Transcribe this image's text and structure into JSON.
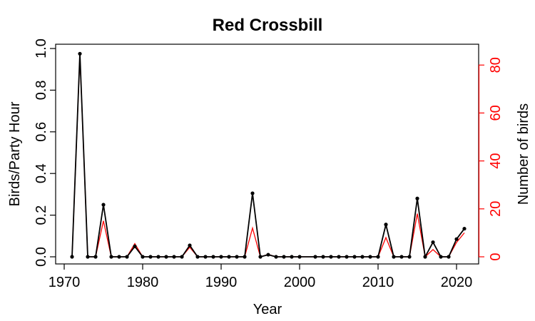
{
  "chart_data": {
    "type": "line",
    "title": "Red Crossbill",
    "xlabel": "Year",
    "ylabel": "Birds/Party Hour",
    "y2label": "Number of birds",
    "xlim": [
      1970,
      2023
    ],
    "ylim": [
      0,
      1
    ],
    "y2lim": [
      0,
      85
    ],
    "xticks": [
      1970,
      1980,
      1990,
      2000,
      2010,
      2020
    ],
    "yticks": [
      0.0,
      0.2,
      0.4,
      0.6,
      0.8,
      1.0
    ],
    "yticklabels": [
      "0.0",
      "0.2",
      "0.4",
      "0.6",
      "0.8",
      "1.0"
    ],
    "y2ticks": [
      0,
      20,
      40,
      60,
      80
    ],
    "colors": {
      "primary": "#000000",
      "secondary": "#ff0000"
    },
    "series": [
      {
        "axis": "left",
        "color": "#000000",
        "markers": true,
        "points": [
          [
            1971,
            0.0
          ],
          [
            1972,
            0.975
          ],
          [
            1973,
            0.0
          ],
          [
            1974,
            0.0
          ],
          [
            1975,
            0.25
          ],
          [
            1976,
            0.0
          ],
          [
            1977,
            0.0
          ],
          [
            1978,
            0.0
          ],
          [
            1979,
            0.05
          ],
          [
            1980,
            0.0
          ],
          [
            1981,
            0.0
          ],
          [
            1982,
            0.0
          ],
          [
            1983,
            0.0
          ],
          [
            1984,
            0.0
          ],
          [
            1985,
            0.0
          ],
          [
            1986,
            0.055
          ],
          [
            1987,
            0.0
          ],
          [
            1988,
            0.0
          ],
          [
            1989,
            0.0
          ],
          [
            1990,
            0.0
          ],
          [
            1991,
            0.0
          ],
          [
            1992,
            0.0
          ],
          [
            1993,
            0.0
          ],
          [
            1994,
            0.305
          ],
          [
            1995,
            0.0
          ],
          [
            1996,
            0.01
          ],
          [
            1997,
            0.0
          ],
          [
            1998,
            0.0
          ],
          [
            1999,
            0.0
          ],
          [
            2000,
            0.0
          ],
          [
            2002,
            0.0
          ],
          [
            2003,
            0.0
          ],
          [
            2004,
            0.0
          ],
          [
            2005,
            0.0
          ],
          [
            2006,
            0.0
          ],
          [
            2007,
            0.0
          ],
          [
            2008,
            0.0
          ],
          [
            2009,
            0.0
          ],
          [
            2010,
            0.0
          ],
          [
            2011,
            0.155
          ],
          [
            2012,
            0.0
          ],
          [
            2013,
            0.0
          ],
          [
            2014,
            0.0
          ],
          [
            2015,
            0.28
          ],
          [
            2016,
            0.0
          ],
          [
            2017,
            0.07
          ],
          [
            2018,
            0.0
          ],
          [
            2019,
            0.0
          ],
          [
            2020,
            0.085
          ],
          [
            2021,
            0.135
          ]
        ]
      },
      {
        "axis": "right",
        "color": "#ff0000",
        "markers": false,
        "points": [
          [
            1971,
            0
          ],
          [
            1972,
            84
          ],
          [
            1973,
            0
          ],
          [
            1974,
            0
          ],
          [
            1975,
            15
          ],
          [
            1976,
            0
          ],
          [
            1977,
            0
          ],
          [
            1978,
            0
          ],
          [
            1979,
            5.5
          ],
          [
            1980,
            0
          ],
          [
            1981,
            0
          ],
          [
            1982,
            0
          ],
          [
            1983,
            0
          ],
          [
            1984,
            0
          ],
          [
            1985,
            0
          ],
          [
            1986,
            4
          ],
          [
            1987,
            0
          ],
          [
            1988,
            0
          ],
          [
            1989,
            0
          ],
          [
            1990,
            0
          ],
          [
            1991,
            0
          ],
          [
            1992,
            0
          ],
          [
            1993,
            0
          ],
          [
            1994,
            12
          ],
          [
            1995,
            0
          ],
          [
            1996,
            1
          ],
          [
            1997,
            0
          ],
          [
            1998,
            0
          ],
          [
            1999,
            0
          ],
          [
            2000,
            0
          ],
          [
            2002,
            0
          ],
          [
            2003,
            0
          ],
          [
            2004,
            0
          ],
          [
            2005,
            0
          ],
          [
            2006,
            0
          ],
          [
            2007,
            0
          ],
          [
            2008,
            0
          ],
          [
            2009,
            0
          ],
          [
            2010,
            0
          ],
          [
            2011,
            8
          ],
          [
            2012,
            0
          ],
          [
            2013,
            0
          ],
          [
            2014,
            0
          ],
          [
            2015,
            18
          ],
          [
            2016,
            0
          ],
          [
            2017,
            3
          ],
          [
            2018,
            0
          ],
          [
            2019,
            0
          ],
          [
            2020,
            6
          ],
          [
            2021,
            10
          ]
        ]
      }
    ]
  }
}
